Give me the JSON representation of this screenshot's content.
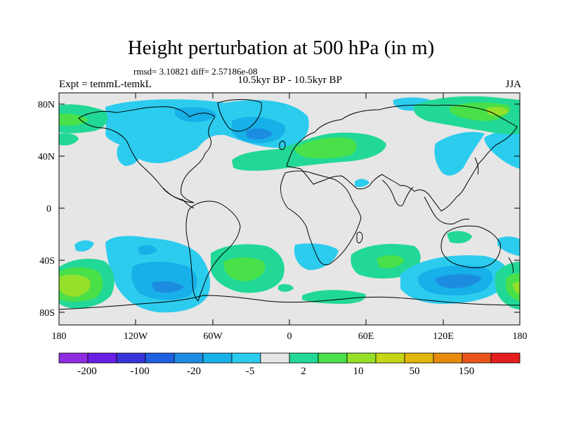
{
  "header": {
    "title": "Height perturbation at 500 hPa (in m)",
    "stats": "rmsd= 3.10821 diff= 2.57186e-08",
    "experiment": "Expt = temmL-temkL",
    "period": "10.5kyr BP - 10.5kyr BP",
    "season": "JJA"
  },
  "axes": {
    "lat_labels": [
      "80N",
      "40N",
      "0",
      "40S",
      "80S"
    ],
    "lon_labels": [
      "180",
      "120W",
      "60W",
      "0",
      "60E",
      "120E",
      "180"
    ]
  },
  "colorbar": {
    "colors": [
      "#8d2ce0",
      "#6a1fe6",
      "#3a34d8",
      "#1f5fe0",
      "#1c8ce0",
      "#18b0e8",
      "#2cccee",
      "#e6e6e6",
      "#22d896",
      "#49e04a",
      "#96e02a",
      "#c6d616",
      "#e0b60c",
      "#e88a0c",
      "#e8561a",
      "#e41e1e"
    ],
    "labels": [
      "-200",
      "-100",
      "-20",
      "-5",
      "2",
      "10",
      "50",
      "150"
    ]
  },
  "map": {
    "background": "#e6e6e6",
    "coastline": "#000000"
  }
}
